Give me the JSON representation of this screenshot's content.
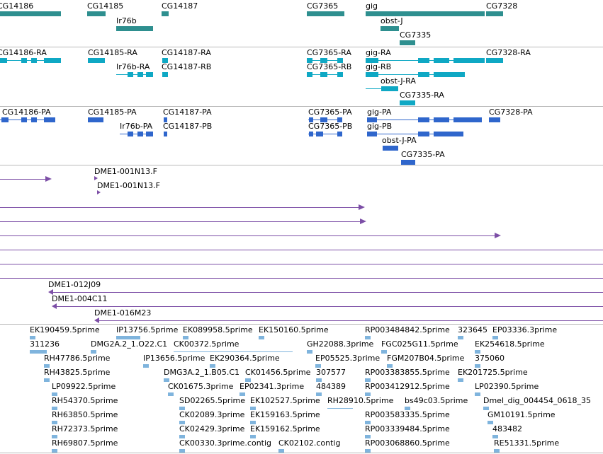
{
  "colors": {
    "gene": "#2e8f8f",
    "transcript": "#0fa8c4",
    "protein": "#2f66cc",
    "clone": "#7c4ea6",
    "est": "#7fb4dd",
    "separator": "#b8b8b8"
  },
  "genes": [
    "CG14186",
    "CG14185",
    "Ir76b",
    "CG14187",
    "CG7365",
    "gig",
    "obst-J",
    "CG7335",
    "CG7328"
  ],
  "transcripts": [
    "CG14186-RA",
    "CG14185-RA",
    "Ir76b-RA",
    "CG14187-RA",
    "CG14187-RB",
    "CG7365-RA",
    "CG7365-RB",
    "gig-RA",
    "gig-RB",
    "obst-J-RA",
    "CG7335-RA",
    "CG7328-RA"
  ],
  "proteins": [
    "CG14186-PA",
    "CG14185-PA",
    "Ir76b-PA",
    "CG14187-PA",
    "CG14187-PB",
    "CG7365-PA",
    "CG7365-PB",
    "gig-PA",
    "gig-PB",
    "obst-J-PA",
    "CG7335-PA",
    "CG7328-PA"
  ],
  "clones": [
    "DME1-001N13.F",
    "DME1-001N13.F",
    "DME1-012J09",
    "DME1-004C11",
    "DME1-016M23"
  ],
  "ests": [
    "EK190459.5prime",
    "IP13756.5prime",
    "EK089958.5prime",
    "EK150160.5prime",
    "RP003484842.5prime",
    "323645",
    "EP03336.3prime",
    "311236",
    "DMG2A.2_1.O22.C1",
    "CK00372.5prime",
    "GH22088.3prime",
    "FGC025G11.5prime",
    "EK254618.5prime",
    "RH47786.5prime",
    "IP13656.5prime",
    "EK290364.5prime",
    "EP05525.3prime",
    "FGM207B04.5prime",
    "375060",
    "RH43825.5prime",
    "DMG3A.2_1.B05.C1",
    "CK01456.5prime",
    "307577",
    "RP003383855.5prime",
    "EK201725.5prime",
    "LP09922.5prime",
    "CK01675.3prime",
    "EP02341.3prime",
    "484389",
    "RP003412912.5prime",
    "LP02390.5prime",
    "RH54370.5prime",
    "SD02265.5prime",
    "EK102527.5prime",
    "RH28910.5prime",
    "bs49c03.5prime",
    "Dmel_dig_004454_0618_35",
    "RH63850.5prime",
    "CK02089.3prime",
    "EK159163.5prime",
    "RP003583335.5prime",
    "GM10191.5prime",
    "RH72373.5prime",
    "CK02429.3prime",
    "EK159162.5prime",
    "RP003339484.5prime",
    "483482",
    "RH69807.5prime",
    "CK00330.3prime.contig",
    "CK02102.contig",
    "RP003068860.5prime",
    "RE51331.5prime"
  ]
}
